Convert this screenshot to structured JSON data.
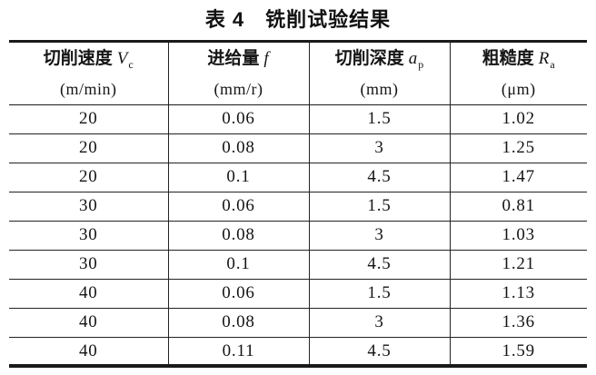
{
  "title": "表 4　铣削试验结果",
  "columns": [
    {
      "name_cn": "切削速度",
      "symbol": "V",
      "subscript": "c",
      "unit": "(m/min)"
    },
    {
      "name_cn": "进给量",
      "symbol": "f",
      "subscript": "",
      "unit": "(mm/r)"
    },
    {
      "name_cn": "切削深度",
      "symbol": "a",
      "subscript": "p",
      "unit": "(mm)"
    },
    {
      "name_cn": "粗糙度",
      "symbol": "R",
      "subscript": "a",
      "unit": "(μm)"
    }
  ],
  "rows": [
    [
      "20",
      "0.06",
      "1.5",
      "1.02"
    ],
    [
      "20",
      "0.08",
      "3",
      "1.25"
    ],
    [
      "20",
      "0.1",
      "4.5",
      "1.47"
    ],
    [
      "30",
      "0.06",
      "1.5",
      "0.81"
    ],
    [
      "30",
      "0.08",
      "3",
      "1.03"
    ],
    [
      "30",
      "0.1",
      "4.5",
      "1.21"
    ],
    [
      "40",
      "0.06",
      "1.5",
      "1.13"
    ],
    [
      "40",
      "0.08",
      "3",
      "1.36"
    ],
    [
      "40",
      "0.11",
      "4.5",
      "1.59"
    ]
  ],
  "colors": {
    "text": "#1a1a1a",
    "border": "#1a1a1a",
    "background": "#ffffff"
  }
}
